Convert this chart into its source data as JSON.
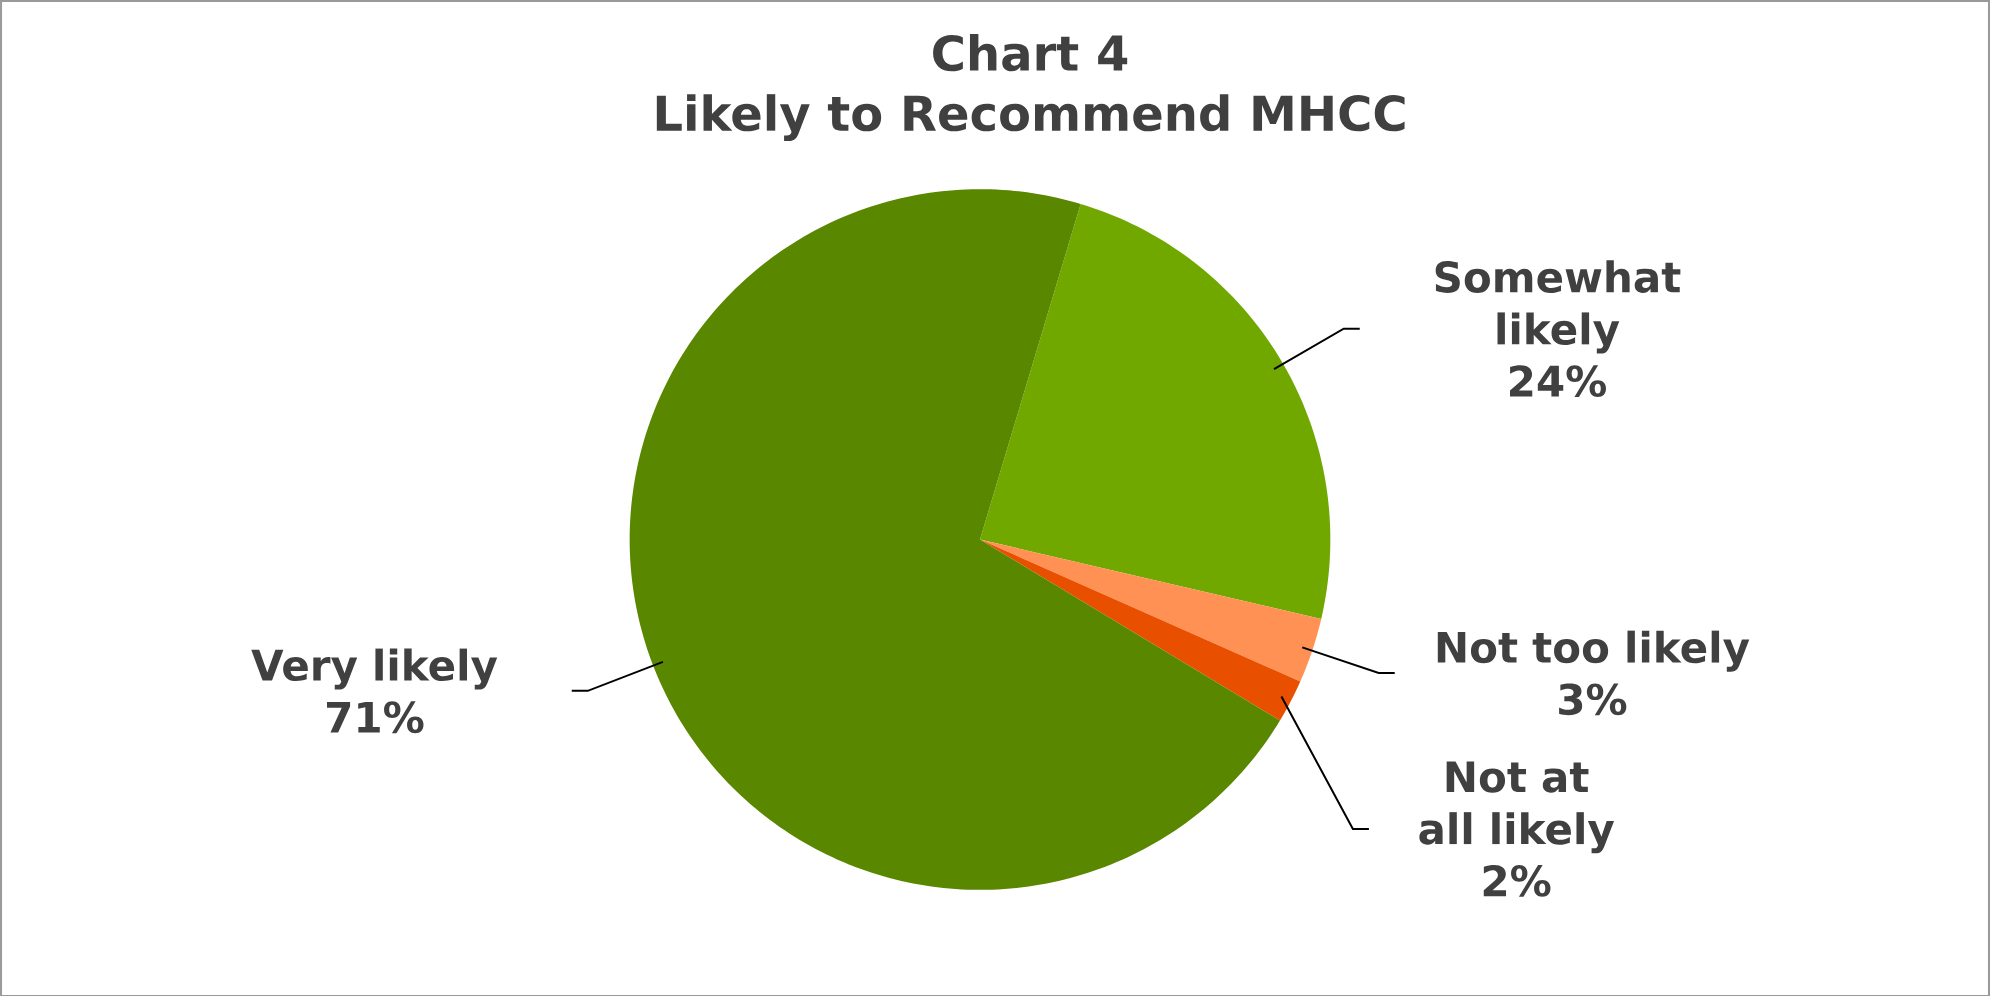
{
  "chart_data": {
    "type": "pie",
    "title": "Chart 4",
    "subtitle": "Likely to Recommend MHCC",
    "categories": [
      "Somewhat likely",
      "Not too likely",
      "Not at all likely",
      "Very likely"
    ],
    "values": [
      24,
      3,
      2,
      71
    ],
    "colors": [
      "#70a800",
      "#ff9155",
      "#e85000",
      "#5a8700"
    ],
    "value_labels": [
      "24%",
      "3%",
      "2%",
      "71%"
    ]
  }
}
